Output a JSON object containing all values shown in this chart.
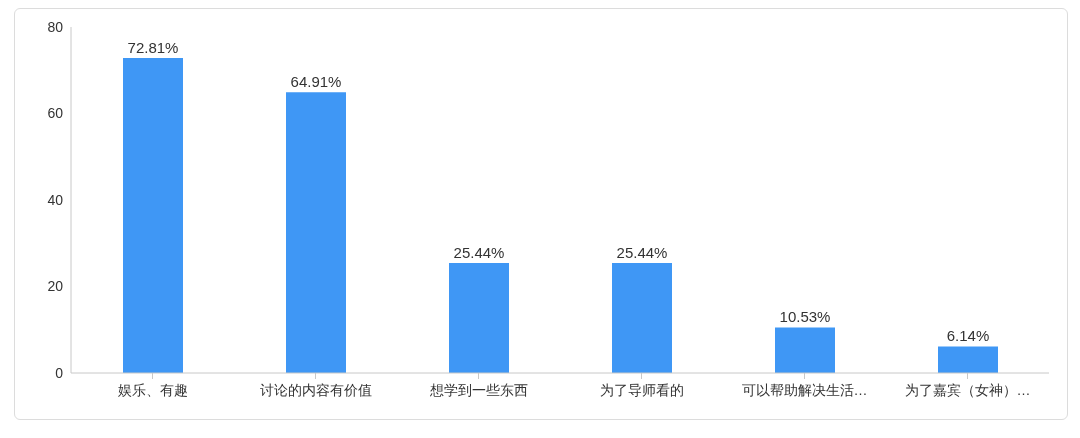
{
  "chart_data": {
    "type": "bar",
    "categories": [
      "娱乐、有趣",
      "讨论的内容有价值",
      "想学到一些东西",
      "为了导师看的",
      "可以帮助解决生活…",
      "为了嘉宾（女神）…"
    ],
    "values": [
      72.81,
      64.91,
      25.44,
      25.44,
      10.53,
      6.14
    ],
    "value_labels": [
      "72.81%",
      "64.91%",
      "25.44%",
      "25.44%",
      "10.53%",
      "6.14%"
    ],
    "color": "#3f97f5",
    "ylim": [
      0,
      80
    ],
    "yticks": [
      0,
      20,
      40,
      60,
      80
    ],
    "grid": false,
    "legend": false
  }
}
